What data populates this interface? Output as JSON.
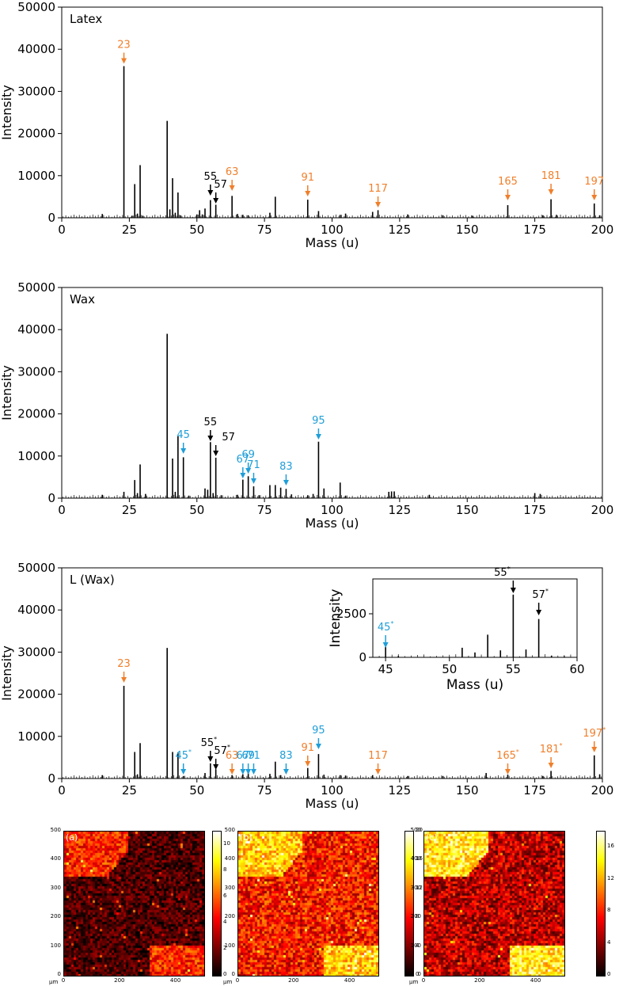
{
  "chart_data": [
    {
      "panel": "Latex",
      "type": "bar",
      "xlabel": "Mass (u)",
      "ylabel": "Intensity",
      "xlim": [
        0,
        200
      ],
      "ylim": [
        0,
        50000
      ],
      "xticks": [
        "0",
        "25",
        "50",
        "75",
        "100",
        "125",
        "150",
        "175",
        "200"
      ],
      "yticks": [
        "0",
        "10000",
        "20000",
        "30000",
        "40000",
        "50000"
      ],
      "peaks": [
        {
          "x": 15,
          "y": 900
        },
        {
          "x": 23,
          "y": 36000
        },
        {
          "x": 26,
          "y": 500
        },
        {
          "x": 27,
          "y": 8000
        },
        {
          "x": 28,
          "y": 1000
        },
        {
          "x": 29,
          "y": 12500
        },
        {
          "x": 30,
          "y": 500
        },
        {
          "x": 39,
          "y": 23000
        },
        {
          "x": 40,
          "y": 2000
        },
        {
          "x": 41,
          "y": 9400
        },
        {
          "x": 42,
          "y": 1200
        },
        {
          "x": 43,
          "y": 6000
        },
        {
          "x": 44,
          "y": 600
        },
        {
          "x": 50,
          "y": 800
        },
        {
          "x": 51,
          "y": 1800
        },
        {
          "x": 52,
          "y": 800
        },
        {
          "x": 53,
          "y": 2200
        },
        {
          "x": 55,
          "y": 4200
        },
        {
          "x": 57,
          "y": 3100
        },
        {
          "x": 63,
          "y": 5200
        },
        {
          "x": 65,
          "y": 900
        },
        {
          "x": 67,
          "y": 700
        },
        {
          "x": 69,
          "y": 600
        },
        {
          "x": 77,
          "y": 1200
        },
        {
          "x": 79,
          "y": 5000
        },
        {
          "x": 91,
          "y": 4300
        },
        {
          "x": 95,
          "y": 1600
        },
        {
          "x": 103,
          "y": 700
        },
        {
          "x": 105,
          "y": 1000
        },
        {
          "x": 115,
          "y": 1400
        },
        {
          "x": 117,
          "y": 1800
        },
        {
          "x": 128,
          "y": 800
        },
        {
          "x": 141,
          "y": 600
        },
        {
          "x": 152,
          "y": 500
        },
        {
          "x": 165,
          "y": 3000
        },
        {
          "x": 178,
          "y": 600
        },
        {
          "x": 181,
          "y": 4400
        },
        {
          "x": 183,
          "y": 700
        },
        {
          "x": 197,
          "y": 3400
        },
        {
          "x": 199,
          "y": 600
        }
      ],
      "annotations": [
        {
          "label": "23",
          "mark": "",
          "x": 23,
          "y": 36000,
          "color": "#f07f2b"
        },
        {
          "label": "55",
          "mark": "",
          "x": 55,
          "y": 4200,
          "color": "#000000"
        },
        {
          "label": "57",
          "mark": "",
          "x": 57,
          "y": 3100,
          "color": "#000000"
        },
        {
          "label": "63",
          "mark": "",
          "x": 63,
          "y": 5200,
          "color": "#f07f2b"
        },
        {
          "label": "91",
          "mark": "",
          "x": 91,
          "y": 4300,
          "color": "#f07f2b"
        },
        {
          "label": "117",
          "mark": "",
          "x": 117,
          "y": 1800,
          "color": "#f07f2b"
        },
        {
          "label": "165",
          "mark": "",
          "x": 165,
          "y": 3000,
          "color": "#f07f2b"
        },
        {
          "label": "181",
          "mark": "",
          "x": 181,
          "y": 4400,
          "color": "#f07f2b"
        },
        {
          "label": "197",
          "mark": "",
          "x": 197,
          "y": 3400,
          "color": "#f07f2b"
        }
      ]
    },
    {
      "panel": "Wax",
      "type": "bar",
      "xlabel": "Mass (u)",
      "ylabel": "Intensity",
      "xlim": [
        0,
        200
      ],
      "ylim": [
        0,
        50000
      ],
      "xticks": [
        "0",
        "25",
        "50",
        "75",
        "100",
        "125",
        "150",
        "175",
        "200"
      ],
      "yticks": [
        "0",
        "10000",
        "20000",
        "30000",
        "40000",
        "50000"
      ],
      "peaks": [
        {
          "x": 15,
          "y": 800
        },
        {
          "x": 23,
          "y": 1500
        },
        {
          "x": 27,
          "y": 4300
        },
        {
          "x": 28,
          "y": 1200
        },
        {
          "x": 29,
          "y": 8000
        },
        {
          "x": 31,
          "y": 1000
        },
        {
          "x": 39,
          "y": 39000
        },
        {
          "x": 41,
          "y": 9400
        },
        {
          "x": 42,
          "y": 1500
        },
        {
          "x": 43,
          "y": 14700
        },
        {
          "x": 45,
          "y": 9700
        },
        {
          "x": 47,
          "y": 600
        },
        {
          "x": 53,
          "y": 2300
        },
        {
          "x": 54,
          "y": 2000
        },
        {
          "x": 55,
          "y": 13300
        },
        {
          "x": 56,
          "y": 1200
        },
        {
          "x": 57,
          "y": 9600
        },
        {
          "x": 59,
          "y": 700
        },
        {
          "x": 65,
          "y": 800
        },
        {
          "x": 67,
          "y": 4400
        },
        {
          "x": 69,
          "y": 5200
        },
        {
          "x": 71,
          "y": 2800
        },
        {
          "x": 73,
          "y": 700
        },
        {
          "x": 77,
          "y": 3100
        },
        {
          "x": 79,
          "y": 3100
        },
        {
          "x": 81,
          "y": 2500
        },
        {
          "x": 83,
          "y": 2200
        },
        {
          "x": 85,
          "y": 900
        },
        {
          "x": 91,
          "y": 700
        },
        {
          "x": 93,
          "y": 1000
        },
        {
          "x": 95,
          "y": 13400
        },
        {
          "x": 97,
          "y": 2300
        },
        {
          "x": 103,
          "y": 3700
        },
        {
          "x": 105,
          "y": 600
        },
        {
          "x": 121,
          "y": 1500
        },
        {
          "x": 122,
          "y": 1600
        },
        {
          "x": 123,
          "y": 1600
        },
        {
          "x": 136,
          "y": 800
        },
        {
          "x": 175,
          "y": 1200
        },
        {
          "x": 177,
          "y": 1000
        }
      ],
      "annotations": [
        {
          "label": "45",
          "mark": "",
          "x": 45,
          "y": 9700,
          "color": "#1f9ed8"
        },
        {
          "label": "55",
          "mark": "",
          "x": 55,
          "y": 13300,
          "color": "#000000"
        },
        {
          "label": "57",
          "mark": "",
          "x": 57,
          "y": 9600,
          "color": "#000000"
        },
        {
          "label": "67",
          "mark": "",
          "x": 67,
          "y": 4400,
          "color": "#1f9ed8"
        },
        {
          "label": "69",
          "mark": "",
          "x": 69,
          "y": 5200,
          "color": "#1f9ed8"
        },
        {
          "label": "71",
          "mark": "",
          "x": 71,
          "y": 2800,
          "color": "#1f9ed8"
        },
        {
          "label": "83",
          "mark": "",
          "x": 83,
          "y": 2200,
          "color": "#1f9ed8"
        },
        {
          "label": "95",
          "mark": "",
          "x": 95,
          "y": 13400,
          "color": "#1f9ed8"
        }
      ]
    },
    {
      "panel": "L (Wax)",
      "type": "bar",
      "xlabel": "Mass (u)",
      "ylabel": "Intensity",
      "xlim": [
        0,
        200
      ],
      "ylim": [
        0,
        50000
      ],
      "xticks": [
        "0",
        "25",
        "50",
        "75",
        "100",
        "125",
        "150",
        "175",
        "200"
      ],
      "yticks": [
        "0",
        "10000",
        "20000",
        "30000",
        "40000",
        "50000"
      ],
      "peaks": [
        {
          "x": 15,
          "y": 800
        },
        {
          "x": 23,
          "y": 22000
        },
        {
          "x": 27,
          "y": 6300
        },
        {
          "x": 28,
          "y": 1000
        },
        {
          "x": 29,
          "y": 8400
        },
        {
          "x": 39,
          "y": 31000
        },
        {
          "x": 41,
          "y": 6300
        },
        {
          "x": 43,
          "y": 6200
        },
        {
          "x": 45,
          "y": 600
        },
        {
          "x": 53,
          "y": 1300
        },
        {
          "x": 55,
          "y": 3600
        },
        {
          "x": 57,
          "y": 2200
        },
        {
          "x": 63,
          "y": 800
        },
        {
          "x": 67,
          "y": 1000
        },
        {
          "x": 69,
          "y": 1400
        },
        {
          "x": 77,
          "y": 1100
        },
        {
          "x": 79,
          "y": 4000
        },
        {
          "x": 81,
          "y": 800
        },
        {
          "x": 91,
          "y": 2500
        },
        {
          "x": 95,
          "y": 5800
        },
        {
          "x": 97,
          "y": 900
        },
        {
          "x": 103,
          "y": 800
        },
        {
          "x": 105,
          "y": 700
        },
        {
          "x": 115,
          "y": 800
        },
        {
          "x": 128,
          "y": 600
        },
        {
          "x": 141,
          "y": 600
        },
        {
          "x": 157,
          "y": 1300
        },
        {
          "x": 165,
          "y": 900
        },
        {
          "x": 178,
          "y": 600
        },
        {
          "x": 181,
          "y": 1800
        },
        {
          "x": 197,
          "y": 5500
        },
        {
          "x": 199,
          "y": 1000
        }
      ],
      "annotations": [
        {
          "label": "23",
          "mark": "",
          "x": 23,
          "y": 22000,
          "color": "#f07f2b"
        },
        {
          "label": "45",
          "mark": "*",
          "x": 45,
          "y": 600,
          "color": "#1f9ed8"
        },
        {
          "label": "55",
          "mark": "*",
          "x": 55,
          "y": 3600,
          "color": "#000000"
        },
        {
          "label": "57",
          "mark": "*",
          "x": 57,
          "y": 2200,
          "color": "#000000"
        },
        {
          "label": "63",
          "mark": "",
          "x": 63,
          "y": 800,
          "color": "#f07f2b"
        },
        {
          "label": "67",
          "mark": "",
          "x": 67,
          "y": 1000,
          "color": "#1f9ed8"
        },
        {
          "label": "69",
          "mark": "",
          "x": 69,
          "y": 1400,
          "color": "#1f9ed8"
        },
        {
          "label": "71",
          "mark": "",
          "x": 71,
          "y": 500,
          "color": "#1f9ed8"
        },
        {
          "label": "83",
          "mark": "",
          "x": 83,
          "y": 500,
          "color": "#1f9ed8"
        },
        {
          "label": "91",
          "mark": "",
          "x": 91,
          "y": 2500,
          "color": "#f07f2b"
        },
        {
          "label": "95",
          "mark": "",
          "x": 95,
          "y": 5800,
          "color": "#1f9ed8"
        },
        {
          "label": "117",
          "mark": "",
          "x": 117,
          "y": 500,
          "color": "#f07f2b"
        },
        {
          "label": "165",
          "mark": "*",
          "x": 165,
          "y": 900,
          "color": "#f07f2b"
        },
        {
          "label": "181",
          "mark": "*",
          "x": 181,
          "y": 1800,
          "color": "#f07f2b"
        },
        {
          "label": "197",
          "mark": "*",
          "x": 197,
          "y": 5500,
          "color": "#f07f2b"
        }
      ],
      "inset": {
        "type": "bar",
        "xlabel": "Mass (u)",
        "ylabel": "Intensity",
        "xlim": [
          44,
          60
        ],
        "ylim": [
          0,
          4500
        ],
        "xticks": [
          "45",
          "50",
          "55",
          "60"
        ],
        "yticks": [
          "0",
          "2500"
        ],
        "peaks": [
          {
            "x": 45,
            "y": 600
          },
          {
            "x": 46,
            "y": 80
          },
          {
            "x": 51,
            "y": 550
          },
          {
            "x": 52,
            "y": 280
          },
          {
            "x": 53,
            "y": 1300
          },
          {
            "x": 54,
            "y": 400
          },
          {
            "x": 55,
            "y": 3600
          },
          {
            "x": 56,
            "y": 450
          },
          {
            "x": 57,
            "y": 2200
          },
          {
            "x": 58,
            "y": 100
          },
          {
            "x": 59,
            "y": 60
          }
        ],
        "annotations": [
          {
            "label": "45",
            "mark": "*",
            "x": 45,
            "y": 600,
            "color": "#1f9ed8"
          },
          {
            "label": "55",
            "mark": "*",
            "x": 55,
            "y": 3600,
            "color": "#000000"
          },
          {
            "label": "57",
            "mark": "*",
            "x": 57,
            "y": 2200,
            "color": "#000000"
          }
        ]
      }
    },
    {
      "panel": "(a)",
      "type": "heatmap",
      "xlim": [
        0,
        500
      ],
      "ylim": [
        0,
        500
      ],
      "xticks": [
        "0",
        "200",
        "400"
      ],
      "yticks": [
        "0",
        "100",
        "200",
        "300",
        "400",
        "500"
      ],
      "unit": "µm",
      "colorbar_range": [
        0,
        11
      ],
      "colorbar_ticks": [
        "0",
        "2",
        "4",
        "6",
        "8",
        "10"
      ],
      "bright_regions": [
        "top-left",
        "bottom-right"
      ]
    },
    {
      "panel": "(b)",
      "type": "heatmap",
      "xlim": [
        0,
        500
      ],
      "ylim": [
        0,
        500
      ],
      "xticks": [
        "0",
        "200",
        "400"
      ],
      "yticks": [
        "0",
        "100",
        "200",
        "300",
        "400",
        "500"
      ],
      "unit": "µm",
      "colorbar_range": [
        0,
        20
      ],
      "colorbar_ticks": [
        "0",
        "4",
        "8",
        "12",
        "16",
        "20"
      ],
      "bright_regions": [
        "top-left",
        "bottom-right"
      ]
    },
    {
      "panel": "(c)",
      "type": "heatmap",
      "xlim": [
        0,
        500
      ],
      "ylim": [
        0,
        500
      ],
      "xticks": [
        "0",
        "200",
        "400"
      ],
      "yticks": [
        "0",
        "100",
        "200",
        "300",
        "400",
        "500"
      ],
      "unit": "µm",
      "colorbar_range": [
        0,
        18
      ],
      "colorbar_ticks": [
        "0",
        "4",
        "8",
        "12",
        "16"
      ],
      "bright_regions": [
        "top-left",
        "bottom-right"
      ]
    }
  ]
}
